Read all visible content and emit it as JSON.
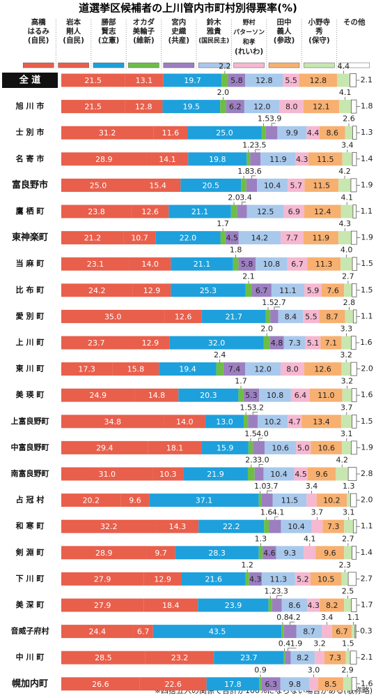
{
  "chart_data": {
    "type": "stacked-bar",
    "title": "道選挙区候補者の上川管内市町村別得票率(%)",
    "note": "※四捨五入の関係で合計が100%にならない場合がある(敬称略)",
    "xlim": [
      0,
      100
    ],
    "categories": [
      "全 道",
      "旭 川 市",
      "士 別 市",
      "名 寄 市",
      "富良野市",
      "鷹 栖 町",
      "東神楽町",
      "当 麻 町",
      "比 布 町",
      "愛 別 町",
      "上 川 町",
      "東 川 町",
      "美 瑛 町",
      "上富良野町",
      "中富良野町",
      "南富良野町",
      "占 冠 村",
      "和 寒 町",
      "剣 淵 町",
      "下 川 町",
      "美 深 町",
      "音威子府村",
      "中 川 町",
      "幌加内町"
    ],
    "series": [
      {
        "name": "高橋\nはるみ",
        "party": "(自民)",
        "color": "#e8604c",
        "values": [
          21.5,
          21.5,
          31.2,
          28.9,
          25.0,
          23.8,
          21.2,
          23.1,
          24.2,
          35.0,
          23.7,
          17.3,
          24.9,
          34.8,
          29.4,
          31.0,
          20.2,
          32.2,
          28.9,
          27.9,
          27.9,
          24.4,
          28.5,
          26.6
        ],
        "value_labels": [
          "21.5",
          "21.5",
          "31.2",
          "28.9",
          "25.0",
          "23.8",
          "21.2",
          "23.1",
          "24.2",
          "35.0",
          "23.7",
          "17.3",
          "24.9",
          "34.8",
          "29.4",
          "31.0",
          "20.2",
          "32.2",
          "28.9",
          "27.9",
          "27.9",
          "24.4",
          "28.5",
          "26.6"
        ]
      },
      {
        "name": "岩本\n剛人",
        "party": "(自民)",
        "color": "#e8604c",
        "values": [
          13.1,
          12.8,
          11.6,
          14.1,
          15.4,
          12.6,
          10.7,
          14.0,
          12.9,
          12.6,
          12.9,
          15.8,
          14.8,
          14.0,
          18.1,
          10.3,
          9.6,
          14.3,
          9.7,
          12.9,
          18.4,
          6.7,
          23.2,
          22.6
        ],
        "value_labels": [
          "13.1",
          "12.8",
          "11.6",
          "14.1",
          "15.4",
          "12.6",
          "10.7",
          "14.0",
          "12.9",
          "12.6",
          "12.9",
          "15.8",
          "14.8",
          "14.0",
          "18.1",
          "10.3",
          "9.6",
          "14.3",
          "9.7",
          "12.9",
          "18.4",
          "6.7",
          "23.2",
          "22.6"
        ]
      },
      {
        "name": "勝部\n賢志",
        "party": "(立憲)",
        "color": "#1ea0dc",
        "values": [
          19.7,
          19.5,
          25.0,
          19.8,
          20.5,
          21.1,
          22.0,
          21.1,
          25.3,
          21.7,
          32.0,
          19.4,
          20.3,
          13.0,
          15.9,
          21.9,
          37.1,
          22.2,
          28.3,
          21.6,
          23.9,
          43.5,
          23.7,
          17.8
        ],
        "value_labels": [
          "19.7",
          "19.5",
          "25.0",
          "19.8",
          "20.5",
          "21.1",
          "22.0",
          "21.1",
          "25.3",
          "21.7",
          "32.0",
          "19.4",
          "20.3",
          "13.0",
          "15.9",
          "21.9",
          "37.1",
          "22.2",
          "28.3",
          "21.6",
          "23.9",
          "43.5",
          "23.7",
          "17.8"
        ]
      },
      {
        "name": "オカダ\n美輪子",
        "party": "(維新)",
        "color": "#6dbe45",
        "values": [
          2.2,
          2.0,
          1.5,
          1.2,
          1.8,
          2.0,
          1.7,
          1.8,
          2.1,
          1.5,
          2.0,
          2.4,
          1.7,
          1.5,
          1.5,
          2.3,
          1.0,
          1.6,
          1.3,
          1.2,
          1.2,
          0.8,
          0.4,
          0.9
        ],
        "value_labels": [
          "2.2",
          "2.0",
          "1.5",
          "1.2",
          "1.8",
          "2.0",
          "1.7",
          "1.8",
          "2.1",
          "1.5",
          "2.0",
          "2.4",
          "1.7",
          "1.5",
          "1.5",
          "2.3",
          "1.0",
          "1.6",
          "1.3",
          "1.2",
          "1.2",
          "0.8",
          "0.4",
          "0.9"
        ]
      },
      {
        "name": "宮内\n史織",
        "party": "(共産)",
        "color": "#9b7fc0",
        "values": [
          5.8,
          6.2,
          3.9,
          3.5,
          3.6,
          3.4,
          4.5,
          5.8,
          6.7,
          2.7,
          4.8,
          7.4,
          5.3,
          3.2,
          4.0,
          3.0,
          3.7,
          4.1,
          4.6,
          4.3,
          3.3,
          4.2,
          1.9,
          6.3
        ],
        "value_labels": [
          "5.8",
          "6.2",
          "3.9",
          "3.5",
          "3.6",
          "3.4",
          "4.5",
          "5.8",
          "6.7",
          "2.7",
          "4.8",
          "7.4",
          "5.3",
          "3.2",
          "4.0",
          "3.0",
          "3.7",
          "4.1",
          "4.6",
          "4.3",
          "3.3",
          "4.2",
          "1.9",
          "6.3"
        ]
      },
      {
        "name": "鈴木\n雅貴",
        "party": "(国民民主)",
        "color": "#a8c8ec",
        "values": [
          12.8,
          12.0,
          9.9,
          11.9,
          10.4,
          12.5,
          14.2,
          10.8,
          11.1,
          8.4,
          7.3,
          12.0,
          10.8,
          10.2,
          10.6,
          10.4,
          11.5,
          10.4,
          9.3,
          11.3,
          8.6,
          8.7,
          8.2,
          9.8
        ],
        "value_labels": [
          "12.8",
          "12.0",
          "9.9",
          "11.9",
          "10.4",
          "12.5",
          "14.2",
          "10.8",
          "11.1",
          "8.4",
          "7.3",
          "12.0",
          "10.8",
          "10.2",
          "10.6",
          "10.4",
          "11.5",
          "10.4",
          "9.3",
          "11.3",
          "8.6",
          "8.7",
          "8.2",
          "9.8"
        ]
      },
      {
        "name": "野村\nパターソン和孝",
        "party": "(れいわ)",
        "color": "#f5b8d0",
        "values": [
          5.5,
          8.0,
          4.4,
          4.3,
          5.7,
          6.9,
          7.7,
          6.7,
          5.9,
          5.5,
          5.1,
          8.0,
          6.4,
          4.7,
          5.0,
          4.5,
          3.4,
          3.7,
          4.1,
          5.2,
          4.3,
          3.4,
          3.2,
          3.0
        ],
        "value_labels": [
          "5.5",
          "8.0",
          "4.4",
          "4.3",
          "5.7",
          "6.9",
          "7.7",
          "6.7",
          "5.9",
          "5.5",
          "5.1",
          "8.0",
          "6.4",
          "4.7",
          "5.0",
          "4.5",
          "3.4",
          "3.7",
          "4.1",
          "5.2",
          "4.3",
          "3.4",
          "3.2",
          "3.0"
        ]
      },
      {
        "name": "田中\n義人",
        "party": "(参政)",
        "color": "#f8b070",
        "values": [
          12.8,
          12.1,
          8.6,
          11.5,
          11.5,
          12.4,
          11.9,
          11.3,
          7.6,
          8.7,
          7.1,
          12.6,
          11.0,
          13.4,
          10.6,
          9.6,
          10.2,
          7.3,
          9.6,
          10.5,
          8.2,
          6.7,
          7.3,
          8.5
        ],
        "value_labels": [
          "12.8",
          "12.1",
          "8.6",
          "11.5",
          "11.5",
          "12.4",
          "11.9",
          "11.3",
          "7.6",
          "8.7",
          "7.1",
          "12.6",
          "11.0",
          "13.4",
          "10.6",
          "9.6",
          "10.2",
          "7.3",
          "9.6",
          "10.5",
          "8.2",
          "6.7",
          "7.3",
          "8.5"
        ]
      },
      {
        "name": "小野寺\n秀",
        "party": "(保守)",
        "color": "#c8e6b0",
        "values": [
          4.4,
          4.1,
          2.6,
          3.4,
          4.2,
          4.1,
          4.3,
          4.0,
          2.7,
          2.8,
          3.3,
          3.2,
          3.2,
          3.7,
          3.1,
          4.2,
          1.3,
          3.1,
          2.7,
          2.3,
          2.5,
          1.1,
          1.5,
          2.9
        ],
        "value_labels": [
          "4.4",
          "4.1",
          "2.6",
          "3.4",
          "4.2",
          "4.1",
          "4.3",
          "4.0",
          "2.7",
          "2.8",
          "3.3",
          "3.2",
          "3.2",
          "3.7",
          "3.1",
          "4.2",
          "1.3",
          "3.1",
          "2.7",
          "2.3",
          "2.5",
          "1.1",
          "1.5",
          "2.9"
        ]
      },
      {
        "name": "その他",
        "color": "#ffffff",
        "values": [
          2.1,
          1.8,
          1.3,
          1.4,
          1.9,
          1.1,
          1.9,
          1.5,
          1.5,
          1.1,
          1.6,
          2.0,
          1.6,
          1.5,
          1.9,
          2.8,
          2.0,
          1.1,
          1.4,
          2.7,
          1.7,
          0.3,
          2.1,
          1.6
        ],
        "value_labels": [
          "2.1",
          "1.8",
          "1.3",
          "1.4",
          "1.9",
          "1.1",
          "1.9",
          "1.5",
          "1.5",
          "1.1",
          "1.6",
          "2.0",
          "1.6",
          "1.5",
          "1.9",
          "2.8",
          "2.0",
          "1.1",
          "1.4",
          "2.7",
          "1.7",
          "0.3",
          "2.1",
          "1.6"
        ]
      }
    ]
  }
}
